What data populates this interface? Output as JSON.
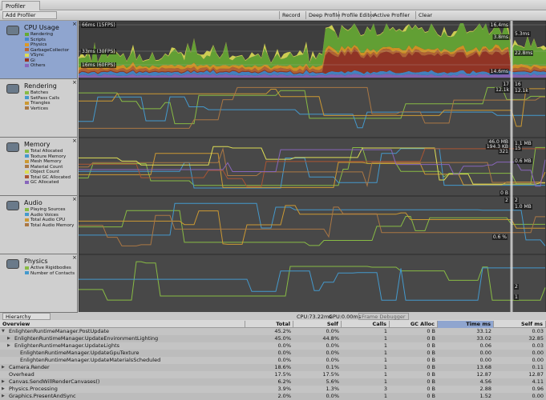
{
  "window": {
    "tab": "Profiler"
  },
  "toolbar": {
    "add_profiler": "Add Profiler",
    "buttons": [
      "Record",
      "Deep Profile",
      "Profile Editor",
      "Active Profiler",
      "Clear"
    ]
  },
  "modules": [
    {
      "title": "CPU Usage",
      "legend": [
        {
          "label": "Rendering",
          "color": "#66aa33"
        },
        {
          "label": "Scripts",
          "color": "#4488cc"
        },
        {
          "label": "Physics",
          "color": "#dd9922"
        },
        {
          "label": "GarbageCollector",
          "color": "#bb6633"
        },
        {
          "label": "VSync",
          "color": "#dddd55"
        },
        {
          "label": "Gi",
          "color": "#993322"
        },
        {
          "label": "Others",
          "color": "#8866bb"
        }
      ],
      "graph_labels": [
        "66ms (15FPS)",
        "33ms (30FPS)",
        "16ms (60FPS)",
        "16.4ms",
        "5.3ms",
        "3.8ms",
        "22.8ms",
        "14.6ms"
      ]
    },
    {
      "title": "Rendering",
      "legend": [
        {
          "label": "Batches",
          "color": "#88bb44"
        },
        {
          "label": "SetPass Calls",
          "color": "#4499cc"
        },
        {
          "label": "Triangles",
          "color": "#cc9933"
        },
        {
          "label": "Vertices",
          "color": "#aa7744"
        }
      ],
      "graph_labels": [
        "17",
        "16",
        "12.1k",
        "12.1k"
      ]
    },
    {
      "title": "Memory",
      "legend": [
        {
          "label": "Total Allocated",
          "color": "#88bb44"
        },
        {
          "label": "Texture Memory",
          "color": "#4499cc"
        },
        {
          "label": "Mesh Memory",
          "color": "#cc9933"
        },
        {
          "label": "Material Count",
          "color": "#aa7744"
        },
        {
          "label": "Object Count",
          "color": "#dddd55"
        },
        {
          "label": "Total GC Allocated",
          "color": "#aa5533"
        },
        {
          "label": "GC Allocated",
          "color": "#8866bb"
        }
      ],
      "graph_labels": [
        "46.0 MB",
        "194.3 KB",
        "321",
        "1.1 MB",
        "15",
        "0.6 MB",
        "0 B"
      ]
    },
    {
      "title": "Audio",
      "legend": [
        {
          "label": "Playing Sources",
          "color": "#88bb44"
        },
        {
          "label": "Audio Voices",
          "color": "#4499cc"
        },
        {
          "label": "Total Audio CPU",
          "color": "#cc9933"
        },
        {
          "label": "Total Audio Memory",
          "color": "#aa7744"
        }
      ],
      "graph_labels": [
        "2",
        "2",
        "1.0 MB",
        "0.6 %"
      ]
    },
    {
      "title": "Physics",
      "legend": [
        {
          "label": "Active Rigidbodies",
          "color": "#88bb44"
        },
        {
          "label": "Number of Contacts",
          "color": "#4499cc"
        }
      ],
      "graph_labels": [
        "2",
        "1"
      ]
    }
  ],
  "statusbar": {
    "view": "Hierarchy",
    "cpu": "CPU:73.22ms",
    "gpu": "GPU:0.00ms",
    "frame_debugger": "Frame Debugger"
  },
  "table": {
    "columns": [
      "Overview",
      "Total",
      "Self",
      "Calls",
      "GC Alloc",
      "Time ms",
      "Self ms"
    ],
    "rows": [
      [
        "EnlightenRuntimeManager.PostUpdate",
        "45.2%",
        "0.0%",
        "1",
        "0 B",
        "33.12",
        "0.03"
      ],
      [
        "EnlightenRuntimeManager.UpdateEnvironmentLighting",
        "45.0%",
        "44.8%",
        "1",
        "0 B",
        "33.02",
        "32.85"
      ],
      [
        "EnlightenRuntimeManager.UpdateLights",
        "0.0%",
        "0.0%",
        "1",
        "0 B",
        "0.06",
        "0.03"
      ],
      [
        "EnlightenRuntimeManager.UpdateGpuTexture",
        "0.0%",
        "0.0%",
        "1",
        "0 B",
        "0.00",
        "0.00"
      ],
      [
        "EnlightenRuntimeManager.UpdateMaterialsScheduled",
        "0.0%",
        "0.0%",
        "1",
        "0 B",
        "0.00",
        "0.00"
      ],
      [
        "Camera.Render",
        "18.6%",
        "0.1%",
        "1",
        "0 B",
        "13.68",
        "0.11"
      ],
      [
        "Overhead",
        "17.5%",
        "17.5%",
        "1",
        "0 B",
        "12.87",
        "12.87"
      ],
      [
        "Canvas.SendWillRenderCanvases()",
        "6.2%",
        "5.6%",
        "1",
        "0 B",
        "4.56",
        "4.11"
      ],
      [
        "Physics.Processing",
        "3.9%",
        "1.3%",
        "3",
        "0 B",
        "2.88",
        "0.96"
      ],
      [
        "Graphics.PresentAndSync",
        "2.0%",
        "0.0%",
        "1",
        "0 B",
        "1.52",
        "0.00"
      ]
    ]
  }
}
